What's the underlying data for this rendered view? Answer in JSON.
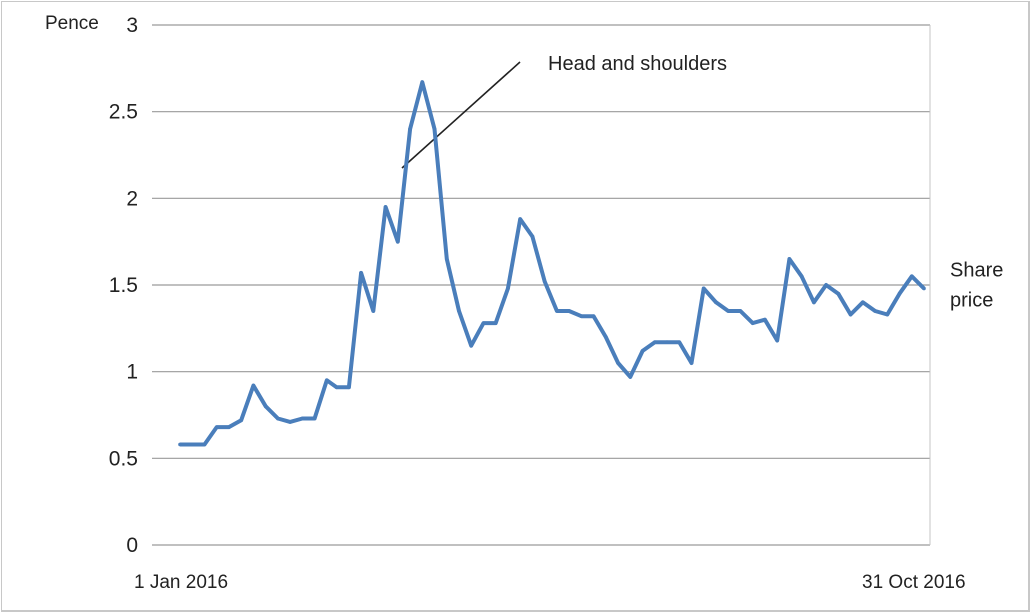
{
  "chart_data": {
    "type": "line",
    "ylabel": "Pence",
    "ylim": [
      0,
      3
    ],
    "yticks": [
      "0",
      "0.5",
      "1",
      "1.5",
      "2",
      "2.5",
      "3"
    ],
    "x_start_label": "1 Jan 2016",
    "x_end_label": "31 Oct 2016",
    "grid": true,
    "annotation": "Head and shoulders",
    "series": [
      {
        "name": "Share price",
        "color": "#4a7ebb",
        "x": [
          "2016-01-01",
          "2016-01-06",
          "2016-01-11",
          "2016-01-16",
          "2016-01-21",
          "2016-01-26",
          "2016-01-31",
          "2016-02-05",
          "2016-02-10",
          "2016-02-15",
          "2016-02-20",
          "2016-02-25",
          "2016-03-01",
          "2016-03-05",
          "2016-03-10",
          "2016-03-15",
          "2016-03-20",
          "2016-03-25",
          "2016-03-30",
          "2016-04-04",
          "2016-04-09",
          "2016-04-14",
          "2016-04-19",
          "2016-04-24",
          "2016-04-29",
          "2016-05-04",
          "2016-05-09",
          "2016-05-14",
          "2016-05-19",
          "2016-05-24",
          "2016-05-29",
          "2016-06-03",
          "2016-06-08",
          "2016-06-13",
          "2016-06-18",
          "2016-06-23",
          "2016-06-28",
          "2016-07-03",
          "2016-07-08",
          "2016-07-13",
          "2016-07-18",
          "2016-07-23",
          "2016-07-28",
          "2016-08-02",
          "2016-08-07",
          "2016-08-12",
          "2016-08-17",
          "2016-08-22",
          "2016-08-27",
          "2016-09-01",
          "2016-09-06",
          "2016-09-11",
          "2016-09-16",
          "2016-09-21",
          "2016-09-26",
          "2016-10-01",
          "2016-10-06",
          "2016-10-11",
          "2016-10-16",
          "2016-10-21",
          "2016-10-26",
          "2016-10-31"
        ],
        "values": [
          0.58,
          0.58,
          0.58,
          0.68,
          0.68,
          0.72,
          0.92,
          0.8,
          0.73,
          0.71,
          0.73,
          0.73,
          0.95,
          0.91,
          0.91,
          1.57,
          1.35,
          1.95,
          1.75,
          2.4,
          2.67,
          2.4,
          1.65,
          1.35,
          1.15,
          1.28,
          1.28,
          1.48,
          1.88,
          1.78,
          1.52,
          1.35,
          1.35,
          1.32,
          1.32,
          1.2,
          1.05,
          0.97,
          1.12,
          1.17,
          1.17,
          1.17,
          1.05,
          1.48,
          1.4,
          1.35,
          1.35,
          1.28,
          1.3,
          1.18,
          1.65,
          1.55,
          1.4,
          1.5,
          1.45,
          1.33,
          1.4,
          1.35,
          1.33,
          1.45,
          1.55,
          1.48
        ]
      }
    ]
  }
}
